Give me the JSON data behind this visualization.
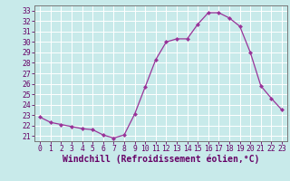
{
  "x": [
    0,
    1,
    2,
    3,
    4,
    5,
    6,
    7,
    8,
    9,
    10,
    11,
    12,
    13,
    14,
    15,
    16,
    17,
    18,
    19,
    20,
    21,
    22,
    23
  ],
  "y": [
    22.8,
    22.3,
    22.1,
    21.9,
    21.7,
    21.6,
    21.1,
    20.8,
    21.1,
    23.1,
    25.7,
    28.3,
    30.0,
    30.3,
    30.3,
    31.7,
    32.8,
    32.8,
    32.3,
    31.5,
    29.0,
    25.8,
    24.6,
    23.5
  ],
  "xlim": [
    -0.5,
    23.5
  ],
  "ylim": [
    20.5,
    33.5
  ],
  "yticks": [
    21,
    22,
    23,
    24,
    25,
    26,
    27,
    28,
    29,
    30,
    31,
    32,
    33
  ],
  "xtick_labels": [
    "0",
    "1",
    "2",
    "3",
    "4",
    "5",
    "6",
    "7",
    "8",
    "9",
    "10",
    "11",
    "12",
    "13",
    "14",
    "15",
    "16",
    "17",
    "18",
    "19",
    "20",
    "21",
    "22",
    "23"
  ],
  "xlabel": "Windchill (Refroidissement éolien,°C)",
  "line_color": "#993399",
  "marker": "D",
  "bg_color": "#c8eaea",
  "grid_color": "#b0d8d8",
  "xlabel_fontsize": 7.0,
  "tick_fontsize": 5.8,
  "ytick_label_fontsize": 5.8,
  "spine_color": "#777777",
  "label_color": "#660066"
}
